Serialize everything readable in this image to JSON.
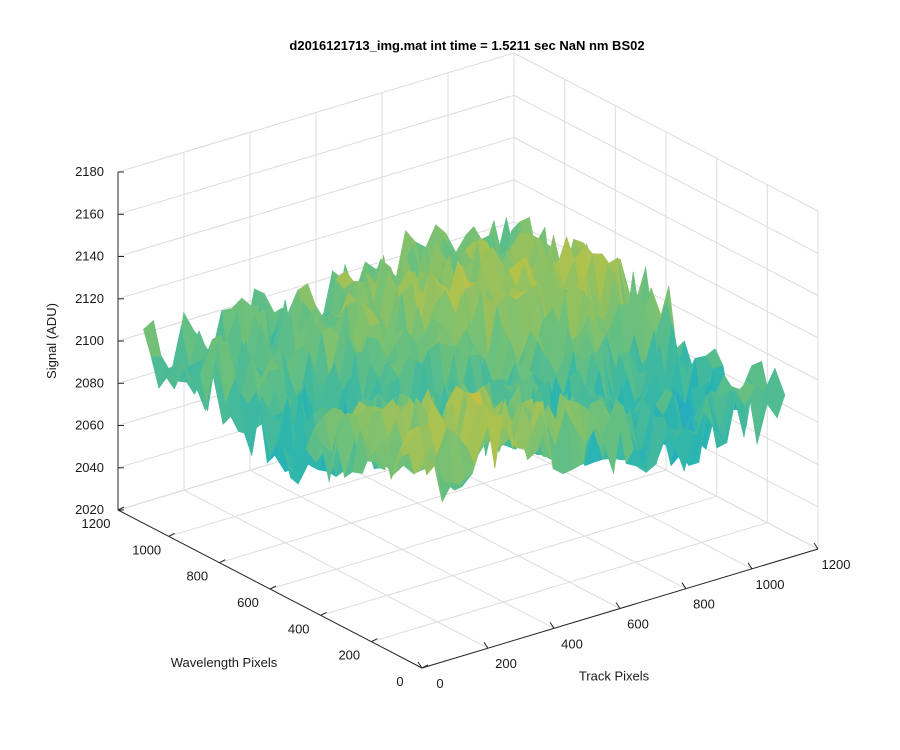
{
  "chart_data": {
    "type": "surface",
    "title": "d2016121713_img.mat int time = 1.5211 sec  NaN nm BS02",
    "xlabel": "Track Pixels",
    "ylabel": "Wavelength Pixels",
    "zlabel": "Signal (ADU)",
    "xlim": [
      0,
      1200
    ],
    "ylim": [
      0,
      1200
    ],
    "zlim": [
      2020,
      2180
    ],
    "x_ticks": [
      "0",
      "200",
      "400",
      "600",
      "800",
      "1000",
      "1200"
    ],
    "y_ticks": [
      "0",
      "200",
      "400",
      "600",
      "800",
      "1000",
      "1200"
    ],
    "z_ticks": [
      "2020",
      "2040",
      "2060",
      "2080",
      "2100",
      "2120",
      "2140",
      "2160",
      "2180"
    ],
    "surface_extent": {
      "x": [
        0,
        1100
      ],
      "y": [
        0,
        1100
      ]
    },
    "surface_mean": 2100,
    "surface_range": [
      2045,
      2165
    ],
    "grid": true,
    "colormap": [
      "#0072bd",
      "#1f9fd8",
      "#2bb5b0",
      "#6cc07c",
      "#b4c24a",
      "#f4b83a",
      "#f9d43a"
    ]
  }
}
